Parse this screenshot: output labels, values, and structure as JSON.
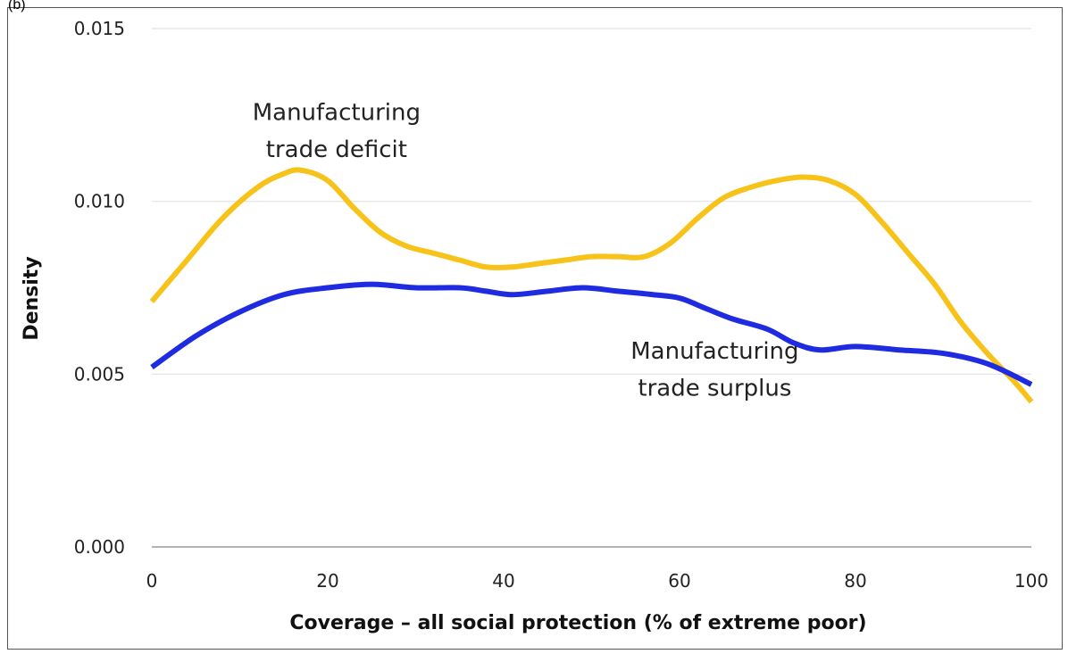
{
  "panel_tag": "(b)",
  "chart_data": {
    "type": "line",
    "title": "",
    "xlabel": "Coverage – all social protection (% of extreme poor)",
    "ylabel": "Density",
    "xlim": [
      0,
      100
    ],
    "ylim": [
      0,
      0.015
    ],
    "x_ticks": [
      0,
      20,
      40,
      60,
      80,
      100
    ],
    "y_ticks": [
      0.0,
      0.005,
      0.01,
      0.015
    ],
    "x_tick_labels": [
      "0",
      "20",
      "40",
      "60",
      "80",
      "100"
    ],
    "y_tick_labels": [
      "0.000",
      "0.005",
      "0.010",
      "0.015"
    ],
    "grid": "horizontal",
    "legend": "none",
    "annotations": [
      {
        "series": 0,
        "lines": [
          "Manufacturing",
          "trade deficit"
        ],
        "x": 21,
        "y": 0.01235
      },
      {
        "series": 1,
        "lines": [
          "Manufacturing",
          "trade surplus"
        ],
        "x": 64,
        "y": 0.00545
      }
    ],
    "series": [
      {
        "color": "#F7C31A",
        "x": [
          0,
          4,
          8,
          12,
          15,
          17,
          20,
          23,
          26,
          29,
          32,
          35,
          38,
          41,
          44,
          47,
          50,
          53,
          56,
          59,
          62,
          65,
          68,
          71,
          74,
          77,
          80,
          83,
          86,
          89,
          92,
          95,
          98,
          100
        ],
        "y": [
          0.0071,
          0.0083,
          0.0095,
          0.0104,
          0.0108,
          0.0109,
          0.0106,
          0.0098,
          0.0091,
          0.0087,
          0.0085,
          0.0083,
          0.0081,
          0.0081,
          0.0082,
          0.0083,
          0.0084,
          0.0084,
          0.0084,
          0.0088,
          0.0095,
          0.0101,
          0.0104,
          0.0106,
          0.0107,
          0.0106,
          0.0102,
          0.0094,
          0.0085,
          0.0076,
          0.0065,
          0.0056,
          0.0048,
          0.0042
        ]
      },
      {
        "color": "#1F2BE0",
        "x": [
          0,
          5,
          10,
          15,
          20,
          25,
          30,
          35,
          38,
          41,
          45,
          49,
          53,
          57,
          60,
          63,
          66,
          70,
          73,
          76,
          80,
          85,
          90,
          95,
          100
        ],
        "y": [
          0.0052,
          0.0061,
          0.0068,
          0.0073,
          0.0075,
          0.0076,
          0.0075,
          0.0075,
          0.0074,
          0.0073,
          0.0074,
          0.0075,
          0.0074,
          0.0073,
          0.0072,
          0.0069,
          0.0066,
          0.0063,
          0.0059,
          0.0057,
          0.0058,
          0.0057,
          0.0056,
          0.0053,
          0.0047
        ]
      }
    ]
  }
}
